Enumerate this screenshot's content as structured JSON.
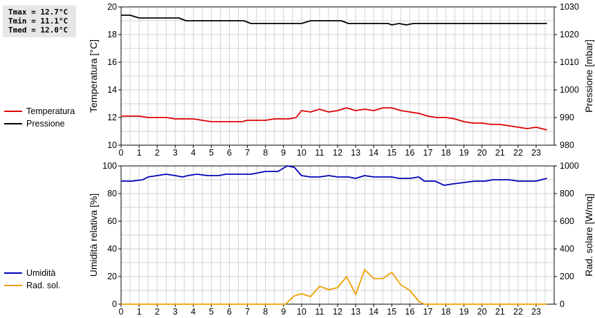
{
  "stats": {
    "tmax": "Tmax = 12.7°C",
    "tmin": "Tmin = 11.1°C",
    "tmed": "Tmed = 12.0°C"
  },
  "colors": {
    "temperature": "#dd0000",
    "pressure": "#000000",
    "humidity": "#0000bb",
    "radiation": "#f0a000",
    "grid": "#d2d2d2",
    "axis": "#000000"
  },
  "legend_top": [
    {
      "label": "Temperatura",
      "color": "#dd0000"
    },
    {
      "label": "Pressione",
      "color": "#000000"
    }
  ],
  "legend_bottom": [
    {
      "label": "Umidità",
      "color": "#0000bb"
    },
    {
      "label": "Rad. sol.",
      "color": "#f0a000"
    }
  ],
  "chart_data": [
    {
      "type": "line",
      "grid": true,
      "xlim": [
        0,
        24
      ],
      "xticks": [
        "0",
        "1",
        "2",
        "3",
        "4",
        "5",
        "6",
        "7",
        "8",
        "9",
        "10",
        "11",
        "12",
        "13",
        "14",
        "15",
        "16",
        "17",
        "18",
        "19",
        "20",
        "21",
        "22",
        "23"
      ],
      "ylabel_left": "Temperatura [°C]",
      "ylim_left": [
        10,
        20
      ],
      "yticks_left": [
        10,
        12,
        14,
        16,
        18,
        20
      ],
      "ylabel_right": "Pressione [mbar]",
      "ylim_right": [
        980,
        1030
      ],
      "yticks_right": [
        980,
        990,
        1000,
        1010,
        1020,
        1030
      ],
      "series": [
        {
          "name": "Temperatura",
          "axis": "left",
          "points": [
            [
              0,
              12.1
            ],
            [
              1,
              12.1
            ],
            [
              1.5,
              12.0
            ],
            [
              2.5,
              12.0
            ],
            [
              3,
              11.9
            ],
            [
              4,
              11.9
            ],
            [
              4.5,
              11.8
            ],
            [
              5,
              11.7
            ],
            [
              6,
              11.7
            ],
            [
              6.7,
              11.7
            ],
            [
              7,
              11.8
            ],
            [
              8,
              11.8
            ],
            [
              8.5,
              11.9
            ],
            [
              9.3,
              11.9
            ],
            [
              9.7,
              12.0
            ],
            [
              10,
              12.5
            ],
            [
              10.5,
              12.4
            ],
            [
              11,
              12.6
            ],
            [
              11.5,
              12.4
            ],
            [
              12,
              12.5
            ],
            [
              12.5,
              12.7
            ],
            [
              13,
              12.5
            ],
            [
              13.5,
              12.6
            ],
            [
              14,
              12.5
            ],
            [
              14.5,
              12.7
            ],
            [
              15,
              12.7
            ],
            [
              15.5,
              12.5
            ],
            [
              16,
              12.4
            ],
            [
              16.5,
              12.3
            ],
            [
              17,
              12.1
            ],
            [
              17.5,
              12.0
            ],
            [
              18,
              12.0
            ],
            [
              18.5,
              11.9
            ],
            [
              19,
              11.7
            ],
            [
              19.5,
              11.6
            ],
            [
              20,
              11.6
            ],
            [
              20.5,
              11.5
            ],
            [
              21,
              11.5
            ],
            [
              21.5,
              11.4
            ],
            [
              22,
              11.3
            ],
            [
              22.5,
              11.2
            ],
            [
              23,
              11.3
            ],
            [
              23.6,
              11.1
            ]
          ]
        },
        {
          "name": "Pressione",
          "axis": "right",
          "points": [
            [
              0,
              1027
            ],
            [
              0.5,
              1027
            ],
            [
              1,
              1026
            ],
            [
              3.2,
              1026
            ],
            [
              3.6,
              1025
            ],
            [
              6.8,
              1025
            ],
            [
              7.2,
              1024
            ],
            [
              10,
              1024
            ],
            [
              10.5,
              1025
            ],
            [
              12.2,
              1025
            ],
            [
              12.6,
              1024
            ],
            [
              14.8,
              1024
            ],
            [
              15,
              1023.5
            ],
            [
              15.4,
              1024
            ],
            [
              15.8,
              1023.5
            ],
            [
              16.2,
              1024
            ],
            [
              23.6,
              1024
            ]
          ]
        }
      ]
    },
    {
      "type": "line",
      "grid": true,
      "xlim": [
        0,
        24
      ],
      "xticks": [
        "0",
        "1",
        "2",
        "3",
        "4",
        "5",
        "6",
        "7",
        "8",
        "9",
        "10",
        "11",
        "12",
        "13",
        "14",
        "15",
        "16",
        "17",
        "18",
        "19",
        "20",
        "21",
        "22",
        "23"
      ],
      "ylabel_left": "Umidità relativa [%]",
      "ylim_left": [
        0,
        100
      ],
      "yticks_left": [
        0,
        20,
        40,
        60,
        80,
        100
      ],
      "ylabel_right": "Rad. solare [W/mq]",
      "ylim_right": [
        0,
        1000
      ],
      "yticks_right": [
        0,
        200,
        400,
        600,
        800,
        1000
      ],
      "series": [
        {
          "name": "Umidità",
          "axis": "left",
          "points": [
            [
              0,
              89
            ],
            [
              0.6,
              89
            ],
            [
              1.2,
              90
            ],
            [
              1.5,
              92
            ],
            [
              2,
              93
            ],
            [
              2.5,
              94
            ],
            [
              3,
              93
            ],
            [
              3.4,
              92
            ],
            [
              3.7,
              93
            ],
            [
              4.2,
              94
            ],
            [
              4.8,
              93
            ],
            [
              5.4,
              93
            ],
            [
              5.8,
              94
            ],
            [
              6.5,
              94
            ],
            [
              7.2,
              94
            ],
            [
              7.6,
              95
            ],
            [
              8,
              96
            ],
            [
              8.7,
              96
            ],
            [
              9.2,
              100
            ],
            [
              9.6,
              99
            ],
            [
              10,
              93
            ],
            [
              10.5,
              92
            ],
            [
              11,
              92
            ],
            [
              11.5,
              93
            ],
            [
              12,
              92
            ],
            [
              12.6,
              92
            ],
            [
              13,
              91
            ],
            [
              13.5,
              93
            ],
            [
              14,
              92
            ],
            [
              14.6,
              92
            ],
            [
              15,
              92
            ],
            [
              15.4,
              91
            ],
            [
              16,
              91
            ],
            [
              16.5,
              92
            ],
            [
              16.8,
              89
            ],
            [
              17.4,
              89
            ],
            [
              17.9,
              86
            ],
            [
              18.4,
              87
            ],
            [
              19,
              88
            ],
            [
              19.6,
              89
            ],
            [
              20.2,
              89
            ],
            [
              20.6,
              90
            ],
            [
              21.5,
              90
            ],
            [
              22,
              89
            ],
            [
              23,
              89
            ],
            [
              23.6,
              91
            ]
          ]
        },
        {
          "name": "Rad. sol.",
          "axis": "right",
          "points": [
            [
              0,
              0
            ],
            [
              9.1,
              0
            ],
            [
              9.6,
              60
            ],
            [
              10,
              75
            ],
            [
              10.5,
              55
            ],
            [
              11,
              130
            ],
            [
              11.5,
              105
            ],
            [
              12,
              120
            ],
            [
              12.5,
              200
            ],
            [
              13,
              70
            ],
            [
              13.5,
              250
            ],
            [
              14,
              185
            ],
            [
              14.5,
              185
            ],
            [
              15,
              230
            ],
            [
              15.5,
              140
            ],
            [
              16,
              100
            ],
            [
              16.5,
              20
            ],
            [
              16.8,
              0
            ],
            [
              23.6,
              0
            ]
          ]
        }
      ]
    }
  ]
}
